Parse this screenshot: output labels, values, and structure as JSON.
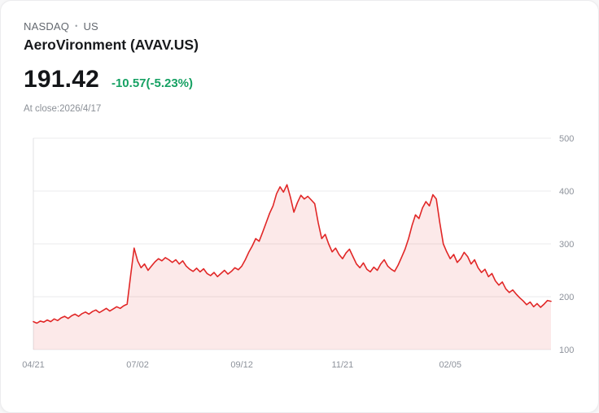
{
  "header": {
    "exchange": "NASDAQ",
    "separator": "•",
    "region": "US",
    "company": "AeroVironment (AVAV.US)",
    "price": "191.42",
    "change": "-10.57(-5.23%)",
    "as_of": "At close:2026/4/17"
  },
  "colors": {
    "change_green": "#16a163",
    "line_red": "#e12727",
    "fill_pink": "rgba(225,39,39,0.10)",
    "grid": "#ebebed",
    "axis_line": "#e0e0e3",
    "axis_label": "#8d929b"
  },
  "chart_data": {
    "type": "area",
    "title": "AVAV.US 1-year price chart",
    "ylabel": "",
    "xlabel": "",
    "ylim": [
      100,
      500
    ],
    "y_ticks": [
      100,
      200,
      300,
      400,
      500
    ],
    "grid": true,
    "legend": false,
    "x_ticks": [
      {
        "label": "04/21",
        "index": 0
      },
      {
        "label": "07/02",
        "index": 30
      },
      {
        "label": "09/12",
        "index": 60
      },
      {
        "label": "11/21",
        "index": 89
      },
      {
        "label": "02/05",
        "index": 120
      }
    ],
    "values": [
      153,
      150,
      154,
      152,
      156,
      153,
      158,
      155,
      160,
      163,
      159,
      164,
      167,
      163,
      168,
      171,
      167,
      172,
      175,
      170,
      174,
      178,
      173,
      177,
      181,
      178,
      183,
      186,
      240,
      292,
      268,
      255,
      262,
      250,
      258,
      266,
      272,
      268,
      274,
      270,
      265,
      270,
      262,
      268,
      258,
      252,
      248,
      254,
      247,
      253,
      244,
      240,
      246,
      238,
      244,
      250,
      243,
      248,
      255,
      251,
      258,
      270,
      284,
      296,
      310,
      305,
      322,
      340,
      358,
      372,
      395,
      408,
      398,
      412,
      388,
      360,
      378,
      392,
      385,
      390,
      383,
      376,
      340,
      310,
      318,
      300,
      285,
      292,
      280,
      272,
      283,
      290,
      276,
      262,
      255,
      264,
      252,
      247,
      256,
      250,
      262,
      270,
      258,
      252,
      248,
      260,
      275,
      290,
      310,
      335,
      355,
      348,
      368,
      380,
      372,
      393,
      385,
      340,
      300,
      285,
      272,
      280,
      265,
      272,
      284,
      276,
      262,
      270,
      255,
      246,
      252,
      238,
      244,
      230,
      222,
      228,
      215,
      208,
      213,
      205,
      198,
      192,
      185,
      190,
      181,
      187,
      180,
      186,
      193,
      191.42
    ]
  }
}
